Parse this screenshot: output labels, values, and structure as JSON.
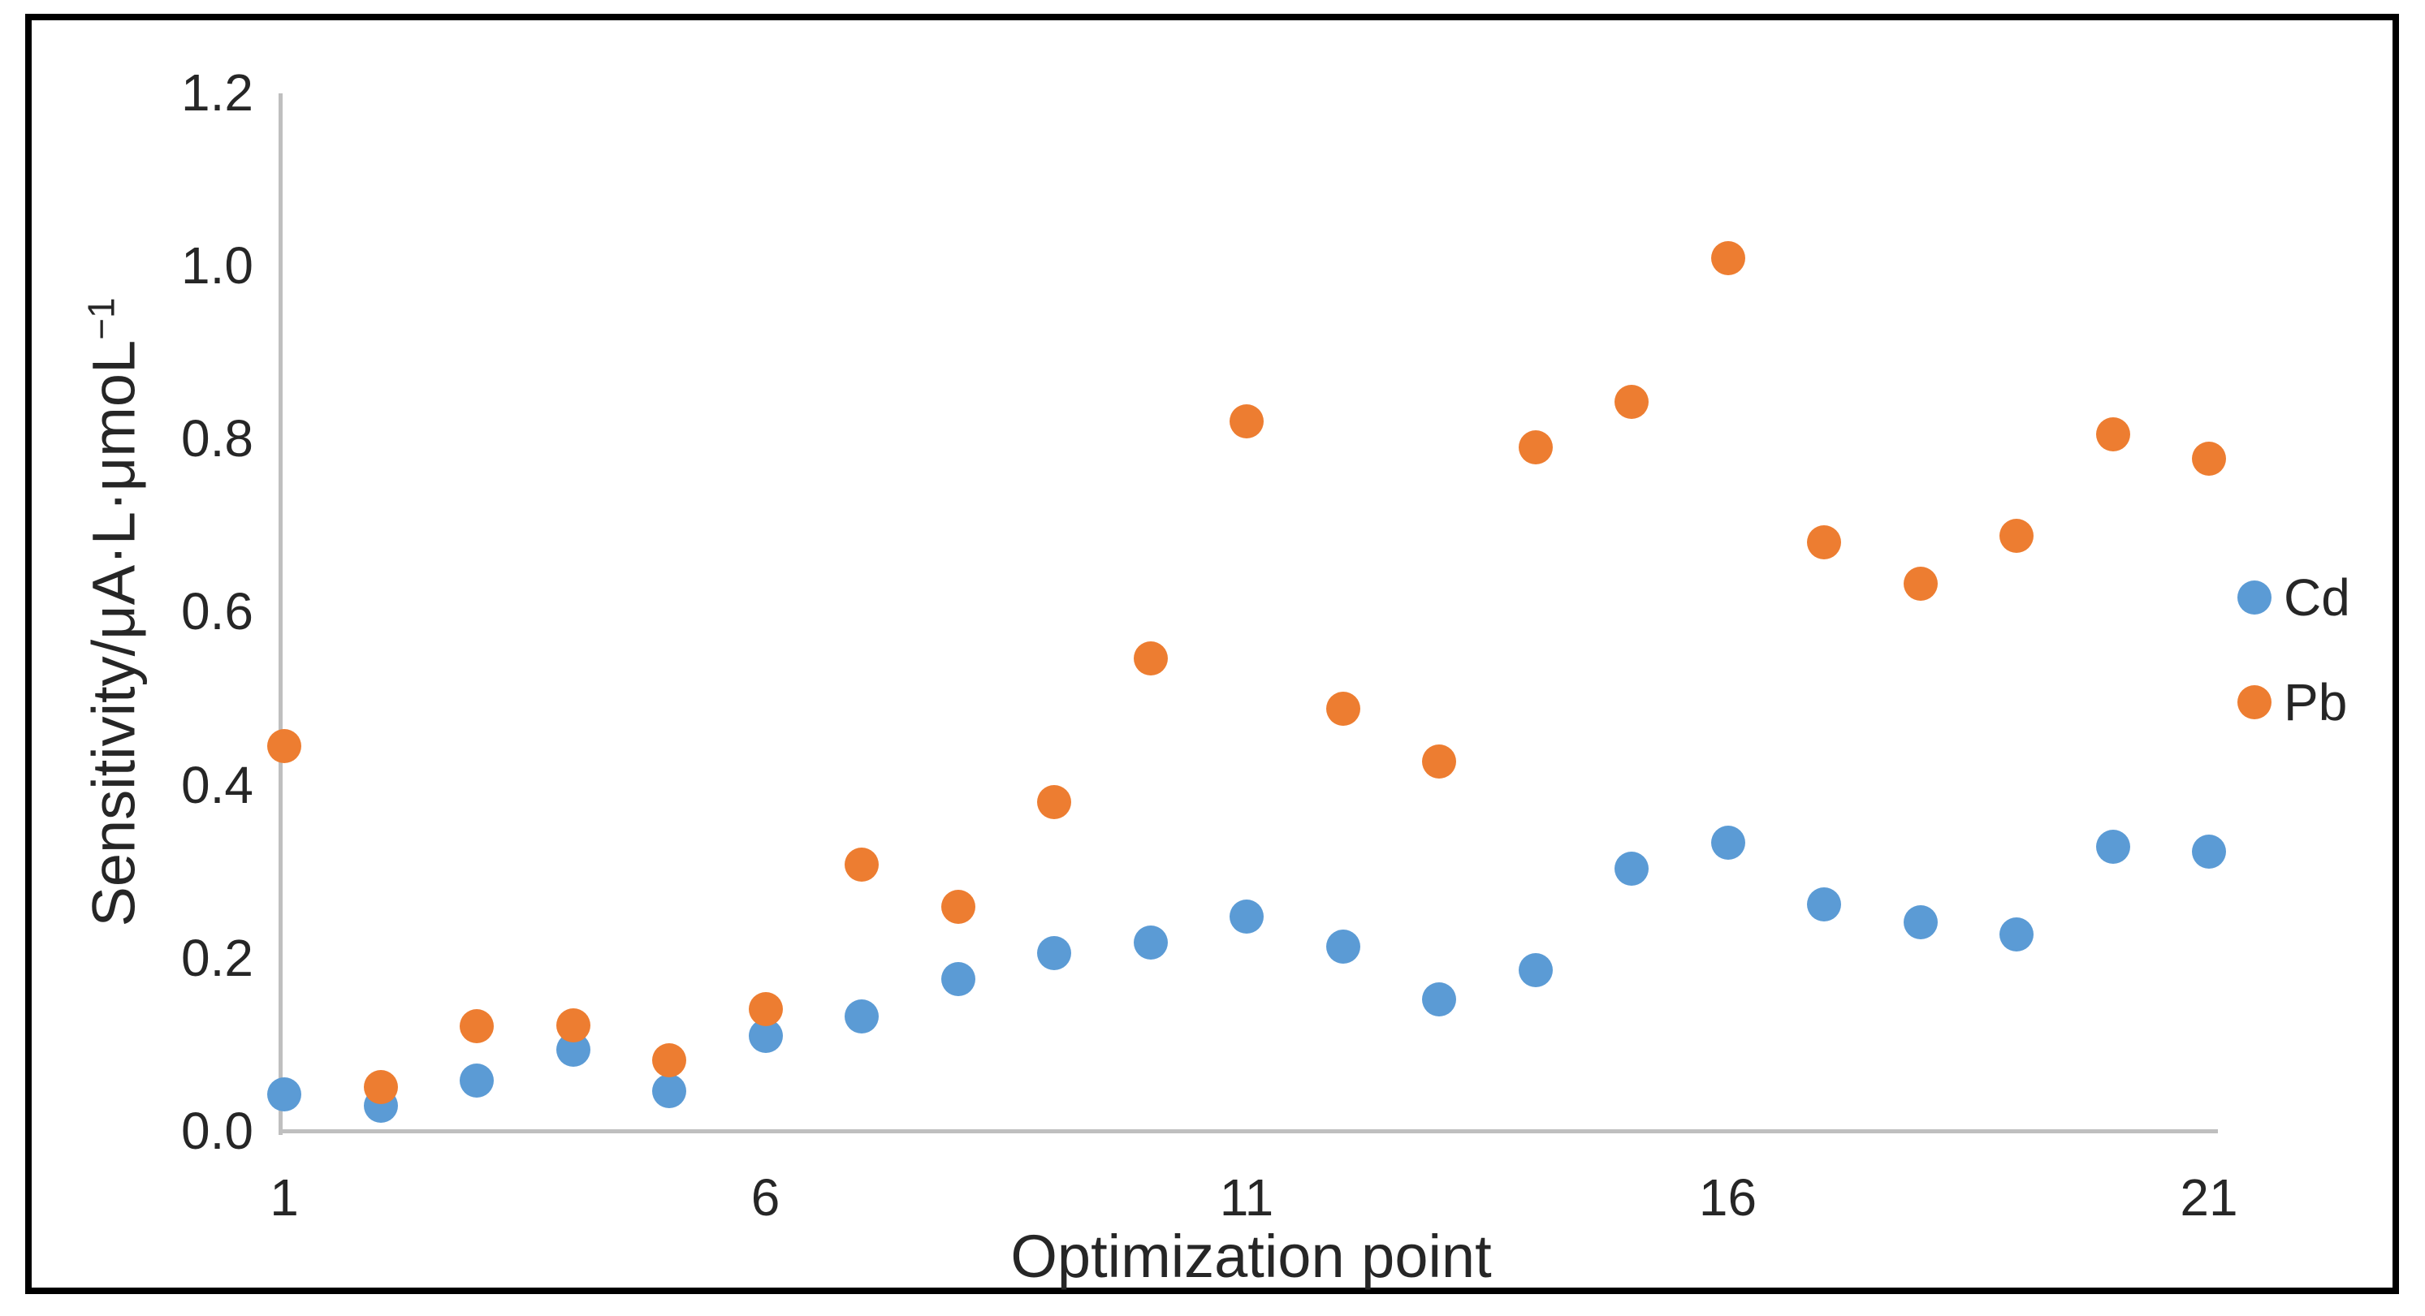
{
  "figure": {
    "background": "#FFFFFF",
    "border_color": "#000000"
  },
  "chart_data": {
    "type": "scatter",
    "title": "",
    "xlabel": "Optimization point",
    "ylabel_main": "Sensitivity/μA·L·μmoL",
    "ylabel_superscript": "−1",
    "x": [
      1,
      2,
      3,
      4,
      5,
      6,
      7,
      8,
      9,
      10,
      11,
      12,
      13,
      14,
      15,
      16,
      17,
      18,
      19,
      20,
      21
    ],
    "series": [
      {
        "name": "Cd",
        "color": "#5B9BD5",
        "values": [
          0.042,
          0.029,
          0.058,
          0.094,
          0.046,
          0.11,
          0.132,
          0.175,
          0.205,
          0.218,
          0.248,
          0.213,
          0.152,
          0.186,
          0.303,
          0.333,
          0.262,
          0.241,
          0.227,
          0.328,
          0.323
        ]
      },
      {
        "name": "Pb",
        "color": "#ED7D31",
        "values": [
          0.445,
          0.051,
          0.121,
          0.122,
          0.082,
          0.141,
          0.308,
          0.259,
          0.38,
          0.546,
          0.82,
          0.488,
          0.427,
          0.79,
          0.842,
          1.008,
          0.68,
          0.632,
          0.688,
          0.805,
          0.777
        ]
      }
    ],
    "xlim": [
      1,
      21
    ],
    "ylim": [
      0.0,
      1.2
    ],
    "x_ticks": [
      "1",
      "6",
      "11",
      "16",
      "21"
    ],
    "x_tick_values": [
      1,
      6,
      11,
      16,
      21
    ],
    "y_ticks": [
      "0.0",
      "0.2",
      "0.4",
      "0.6",
      "0.8",
      "1.0",
      "1.2"
    ],
    "y_tick_values": [
      0.0,
      0.2,
      0.4,
      0.6,
      0.8,
      1.0,
      1.2
    ],
    "grid": "off",
    "legend_position": "right",
    "axis_line_color": "#BFBFBF",
    "text_color": "#262626"
  }
}
